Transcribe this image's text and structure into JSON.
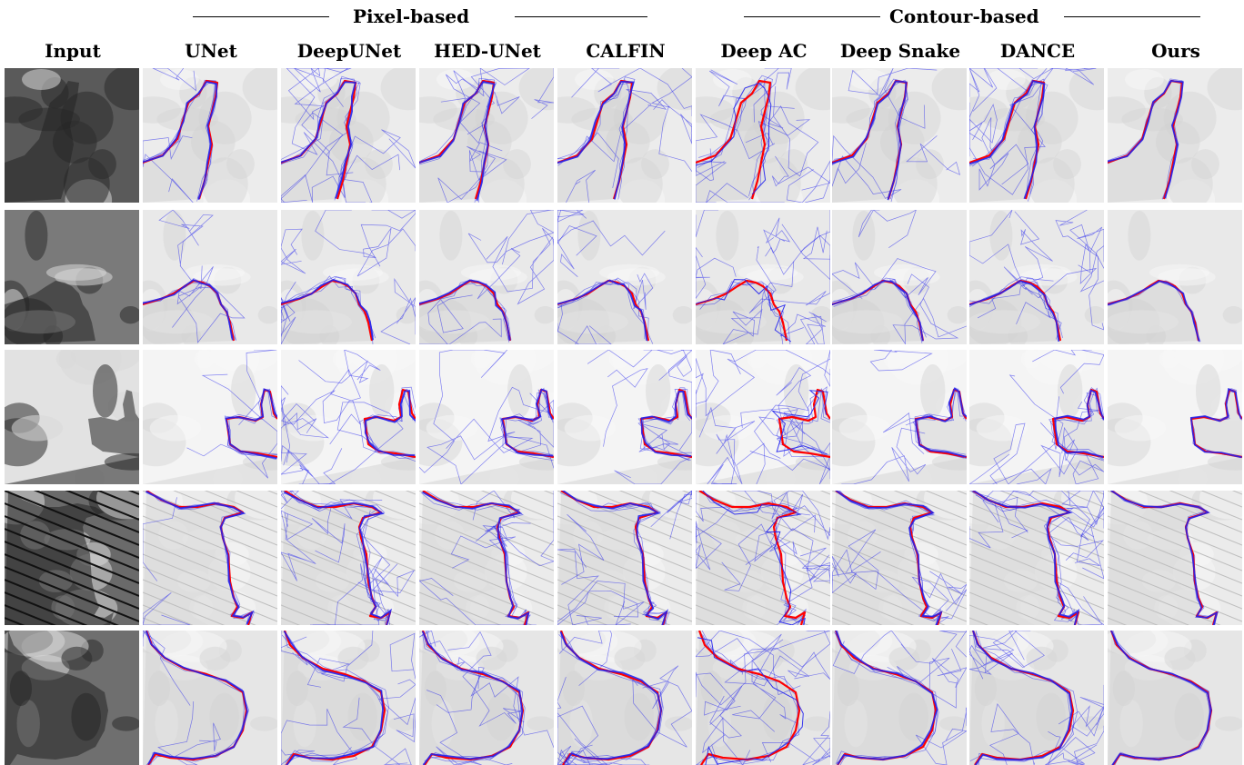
{
  "figure": {
    "groups": [
      {
        "label": "Pixel-based"
      },
      {
        "label": "Contour-based"
      }
    ],
    "columns": [
      "Input",
      "UNet",
      "DeepUNet",
      "HED-UNet",
      "CALFIN",
      "Deep AC",
      "Deep Snake",
      "DANCE",
      "Ours"
    ],
    "row_count": 5,
    "colors": {
      "ground_truth": "#ff0000",
      "prediction": "#2222ee",
      "background_gray": "#e8e8e8"
    },
    "legend_semantics": {
      "ground_truth_color_name": "red",
      "prediction_color_name": "blue"
    }
  }
}
